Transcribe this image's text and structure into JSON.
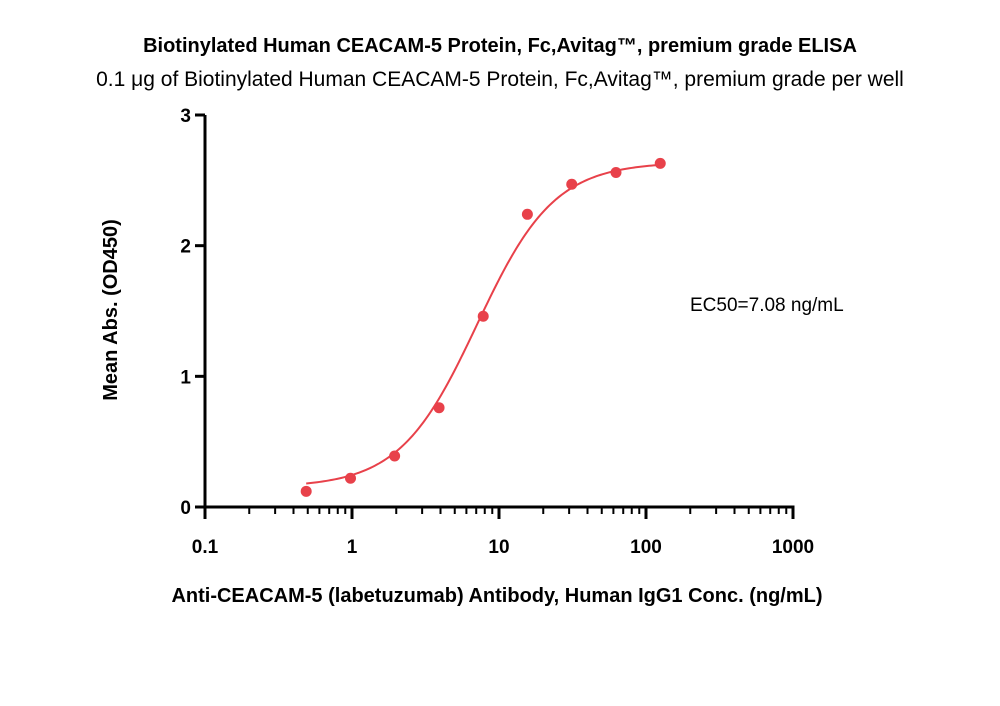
{
  "chart_data": {
    "type": "scatter",
    "title": "Biotinylated Human CEACAM-5 Protein, Fc,Avitag™, premium grade ELISA",
    "subtitle": "0.1 μg of Biotinylated Human CEACAM-5 Protein, Fc,Avitag™, premium grade per well",
    "xlabel": "Anti-CEACAM-5 (labetuzumab) Antibody, Human IgG1 Conc. (ng/mL)",
    "ylabel": "Mean Abs. (OD450)",
    "xscale": "log",
    "xlim": [
      0.1,
      1000
    ],
    "ylim": [
      0,
      3
    ],
    "x_ticks": [
      "0.1",
      "1",
      "10",
      "100",
      "1000"
    ],
    "y_ticks": [
      "0",
      "1",
      "2",
      "3"
    ],
    "annotation": "EC50=7.08 ng/mL",
    "colors": {
      "series": "#e8414a",
      "axis": "#000000"
    },
    "series": [
      {
        "x": [
          0.488,
          0.977,
          1.95,
          3.91,
          7.81,
          15.6,
          31.25,
          62.5,
          125
        ],
        "y": [
          0.12,
          0.22,
          0.39,
          0.76,
          1.46,
          2.24,
          2.47,
          2.56,
          2.63
        ]
      }
    ],
    "fit": {
      "model": "4PL",
      "bottom": 0.15,
      "top": 2.64,
      "ec50": 7.08,
      "hill": 1.65
    }
  }
}
